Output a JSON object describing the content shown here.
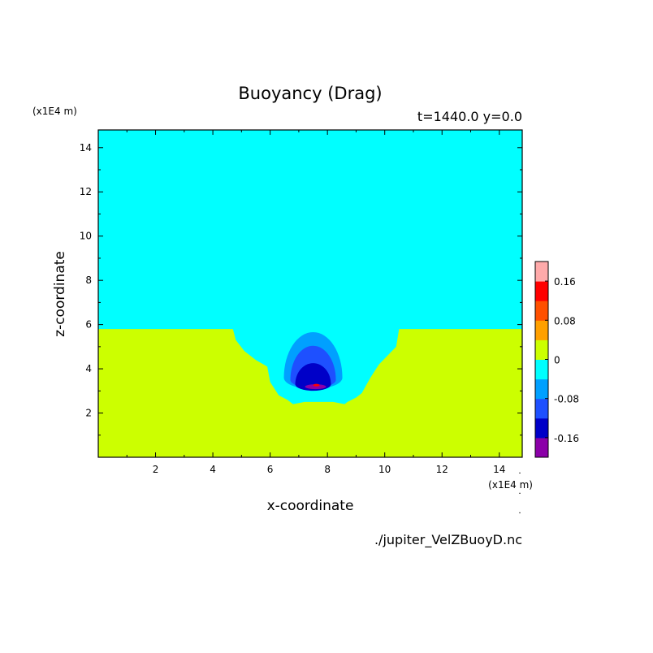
{
  "chart_data": {
    "type": "heatmap",
    "title": "Buoyancy (Drag)",
    "subtitle": "t=1440.0 y=0.0",
    "xlabel": "x-coordinate",
    "ylabel": "z-coordinate",
    "x_units": "(x1E4 m)",
    "y_units": "(x1E4 m)",
    "xlim": [
      0,
      14.8
    ],
    "ylim": [
      0,
      14.8
    ],
    "x_ticks": [
      2,
      4,
      6,
      8,
      10,
      12,
      14
    ],
    "y_ticks": [
      2,
      4,
      6,
      8,
      10,
      12,
      14
    ],
    "source_file": "./jupiter_VelZBuoyD.nc",
    "colorbar": {
      "levels": [
        {
          "color": "#8b00a8"
        },
        {
          "color": "#0000c8"
        },
        {
          "color": "#1e50ff"
        },
        {
          "color": "#00a0ff"
        },
        {
          "color": "#00ffff"
        },
        {
          "color": "#ccff00"
        },
        {
          "color": "#ffa000"
        },
        {
          "color": "#ff5000"
        },
        {
          "color": "#ff0000"
        },
        {
          "color": "#ffaaaa"
        }
      ],
      "tick_labels": [
        "0.16",
        "0.08",
        "0",
        "-0.08",
        "-0.16"
      ],
      "tick_values": [
        0.16,
        0.08,
        0,
        -0.08,
        -0.16
      ]
    },
    "regions": [
      {
        "name": "upper-layer",
        "value_range": [
          -0.04,
          0
        ],
        "color": "#00ffff",
        "boundary_x": [
          0,
          4.7,
          4.8,
          5.1,
          5.5,
          5.9,
          6.0,
          6.3,
          6.6,
          6.8,
          7.2,
          8.2,
          8.6,
          8.7,
          9.0,
          9.2,
          9.5,
          9.8,
          10.1,
          10.4,
          10.5,
          14.8
        ],
        "boundary_z": [
          5.8,
          5.8,
          5.3,
          4.8,
          4.4,
          4.1,
          3.4,
          2.8,
          2.6,
          2.4,
          2.5,
          2.5,
          2.4,
          2.5,
          2.7,
          2.9,
          3.6,
          4.2,
          4.6,
          5.0,
          5.8,
          5.8
        ]
      },
      {
        "name": "lower-layer",
        "value_range": [
          0,
          0.04
        ],
        "color": "#ccff00"
      },
      {
        "name": "plume-outer",
        "center": [
          7.5,
          3.6
        ],
        "value_range": [
          -0.08,
          -0.04
        ],
        "color": "#00a0ff"
      },
      {
        "name": "plume-middle",
        "center": [
          7.5,
          3.5
        ],
        "value_range": [
          -0.12,
          -0.08
        ],
        "color": "#1e50ff"
      },
      {
        "name": "plume-core",
        "center": [
          7.5,
          3.3
        ],
        "value_range": [
          -0.16,
          -0.12
        ],
        "color": "#0000c8"
      },
      {
        "name": "plume-min",
        "center": [
          7.5,
          3.3
        ],
        "value_range": [
          -0.2,
          -0.16
        ],
        "color": "#8b00a8"
      }
    ]
  }
}
